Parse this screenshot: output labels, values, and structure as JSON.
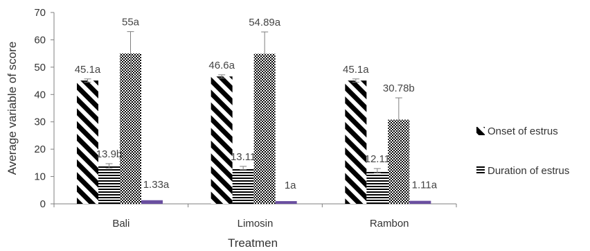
{
  "chart_data": {
    "type": "bar",
    "xlabel": "Treatmen",
    "ylabel": "Average variable of score",
    "ylim": [
      0,
      70
    ],
    "yticks": [
      0,
      10,
      20,
      30,
      40,
      50,
      60,
      70
    ],
    "grid": false,
    "legend_position": "right",
    "categories": [
      "Bali",
      "Limosin",
      "Rambon"
    ],
    "series": [
      {
        "name": "Onset of estrus",
        "pattern": "diagonal-stripes",
        "color": "#000000",
        "values": [
          45.1,
          46.6,
          45.1
        ],
        "errors": [
          0.6,
          0.6,
          0.6
        ],
        "labels": [
          "45.1a",
          "46.6a",
          "45.1a"
        ]
      },
      {
        "name": "Duration of estrus",
        "pattern": "horizontal-stripes",
        "color": "#000000",
        "values": [
          13.9,
          13.11,
          12.11
        ],
        "errors": [
          0.8,
          0.6,
          0.8
        ],
        "labels": [
          "13.9b",
          "13.11",
          "12.11"
        ]
      },
      {
        "name": "",
        "pattern": "dots",
        "color": "#000000",
        "values": [
          55,
          54.89,
          30.78
        ],
        "errors": [
          8,
          8,
          8
        ],
        "labels": [
          "55a",
          "54.89a",
          "30.78b"
        ]
      },
      {
        "name": "",
        "pattern": "solid",
        "color": "#6a4fa0",
        "values": [
          1.33,
          1,
          1.11
        ],
        "errors": [
          0,
          0,
          0
        ],
        "labels": [
          "1.33a",
          "1a",
          "1.11a"
        ]
      }
    ]
  }
}
